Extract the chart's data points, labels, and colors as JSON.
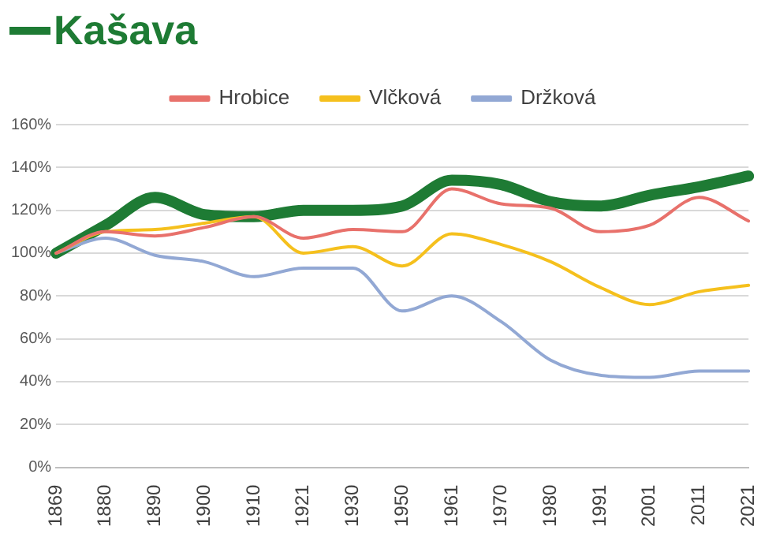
{
  "chart_data": {
    "type": "line",
    "categories": [
      "1869",
      "1880",
      "1890",
      "1900",
      "1910",
      "1921",
      "1930",
      "1950",
      "1961",
      "1970",
      "1980",
      "1991",
      "2001",
      "2011",
      "2021"
    ],
    "series": [
      {
        "name": "Kašava",
        "color": "#1e7b34",
        "values": [
          100,
          113,
          126,
          118,
          117,
          120,
          120,
          122,
          134,
          132,
          124,
          122,
          127,
          131,
          136
        ]
      },
      {
        "name": "Hrobice",
        "color": "#e8716b",
        "values": [
          100,
          110,
          108,
          112,
          117,
          107,
          111,
          110,
          130,
          123,
          121,
          110,
          113,
          126,
          115
        ]
      },
      {
        "name": "Vlčková",
        "color": "#f5c01d",
        "values": [
          100,
          110,
          111,
          114,
          117,
          100,
          103,
          94,
          109,
          104,
          96,
          84,
          76,
          82,
          85
        ]
      },
      {
        "name": "Držková",
        "color": "#92a8d4",
        "values": [
          100,
          107,
          99,
          96,
          89,
          93,
          93,
          73,
          80,
          68,
          50,
          43,
          42,
          45,
          45
        ]
      }
    ],
    "ylim": [
      0,
      160
    ],
    "yticks": [
      {
        "value": 0,
        "label": "0%"
      },
      {
        "value": 20,
        "label": "20%"
      },
      {
        "value": 40,
        "label": "40%"
      },
      {
        "value": 60,
        "label": "60%"
      },
      {
        "value": 80,
        "label": "80%"
      },
      {
        "value": 100,
        "label": "100%"
      },
      {
        "value": 120,
        "label": "120%"
      },
      {
        "value": 140,
        "label": "140%"
      },
      {
        "value": 160,
        "label": "160%"
      }
    ],
    "grid": "y",
    "legend": "top",
    "marker": "none",
    "line_style": "solid"
  }
}
